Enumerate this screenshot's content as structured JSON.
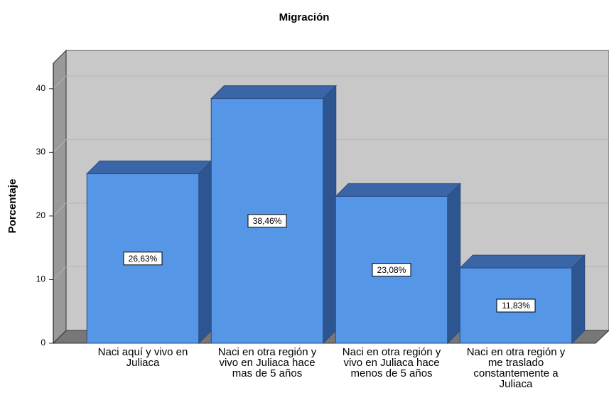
{
  "chart_data": {
    "type": "bar3d",
    "title": "Migración",
    "ylabel": "Porcentaje",
    "categories": [
      "Naci aquí y vivo en Juliaca",
      "Naci en otra región y vivo en Juliaca hace mas de 5 años",
      "Naci en otra región y vivo en Juliaca hace menos de 5 años",
      "Naci en otra región y me traslado constantemente a Juliaca"
    ],
    "values": [
      26.63,
      38.46,
      23.08,
      11.83
    ],
    "value_labels": [
      "26,63%",
      "38,46%",
      "23,08%",
      "11,83%"
    ],
    "color": "#5596e6",
    "ylim": [
      0,
      44
    ],
    "yticks": [
      0,
      10,
      20,
      30,
      40
    ],
    "grid": true
  }
}
